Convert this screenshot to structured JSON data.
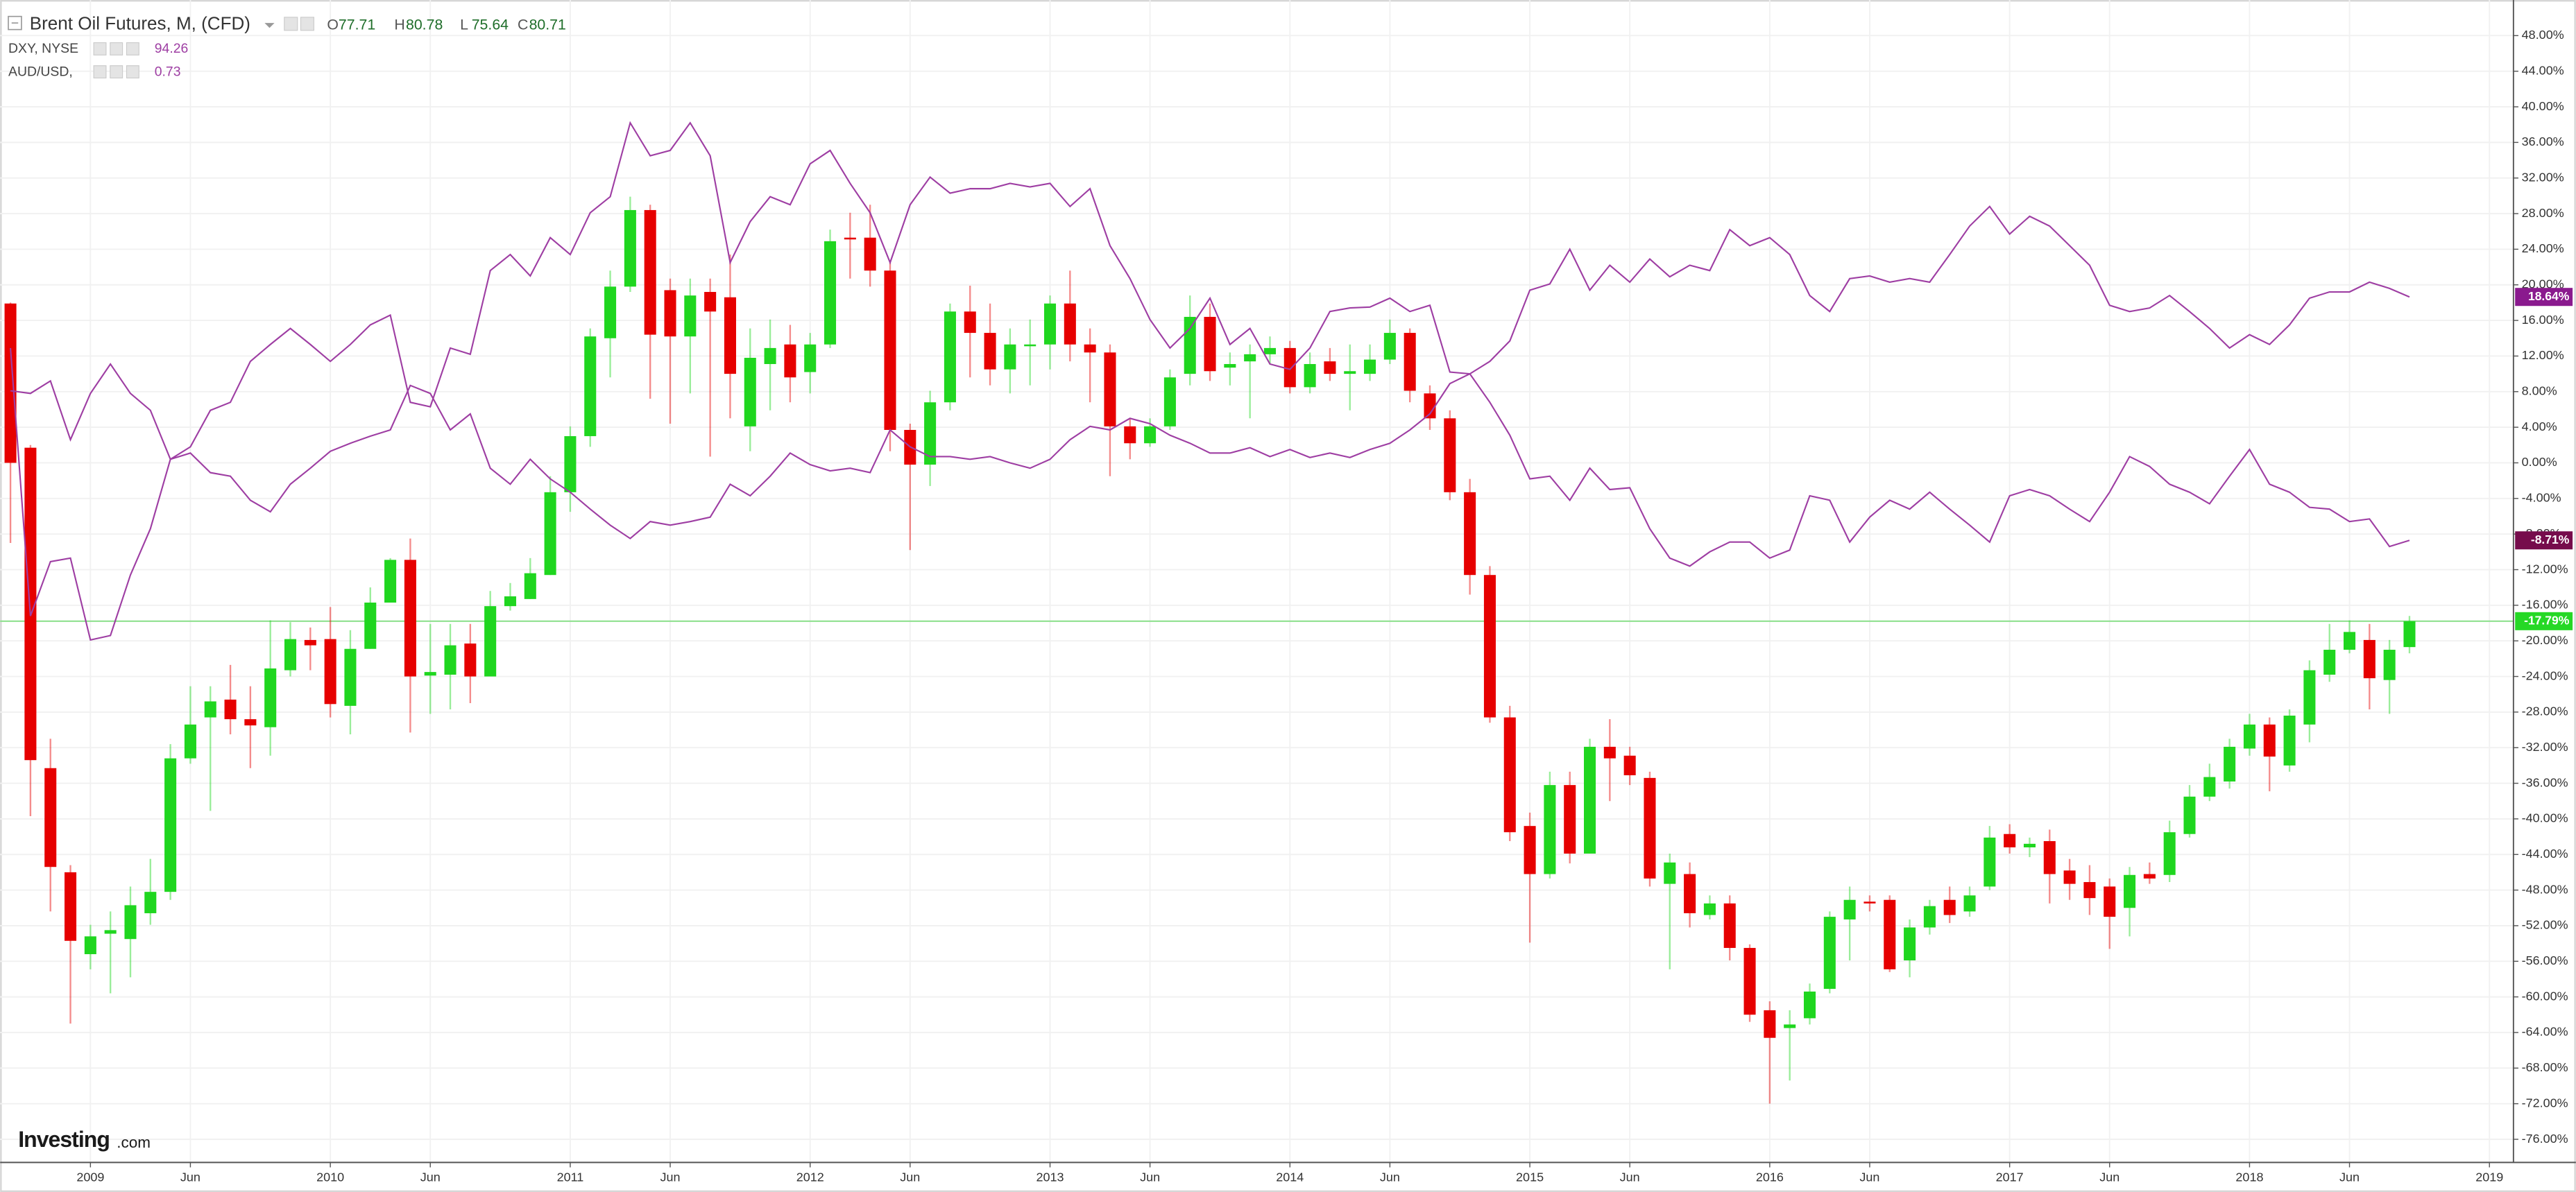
{
  "chart_data": {
    "type": "candlestick",
    "title": "Brent Oil Futures, M, (CFD)",
    "header": [
      {
        "label": "O",
        "value": 77.71
      },
      {
        "label": "H",
        "value": 80.78
      },
      {
        "label": "L",
        "value": 75.64
      },
      {
        "label": "C",
        "value": 80.71
      }
    ],
    "watermark": [
      "Investing",
      ".com"
    ],
    "last_label": "-17.79%",
    "up_color": "#1fd61f",
    "down_color": "#e60000",
    "price_line_color": "#8fe08f",
    "grid": true,
    "ylim": [
      -78.6,
      52
    ],
    "yticks": [
      {
        "value": -76,
        "label": "-76.00%"
      },
      {
        "value": -72,
        "label": "-72.00%"
      },
      {
        "value": -68,
        "label": "-68.00%"
      },
      {
        "value": -64,
        "label": "-64.00%"
      },
      {
        "value": -60,
        "label": "-60.00%"
      },
      {
        "value": -56,
        "label": "-56.00%"
      },
      {
        "value": -52,
        "label": "-52.00%"
      },
      {
        "value": -48,
        "label": "-48.00%"
      },
      {
        "value": -44,
        "label": "-44.00%"
      },
      {
        "value": -40,
        "label": "-40.00%"
      },
      {
        "value": -36,
        "label": "-36.00%"
      },
      {
        "value": -32,
        "label": "-32.00%"
      },
      {
        "value": -28,
        "label": "-28.00%"
      },
      {
        "value": -24,
        "label": "-24.00%"
      },
      {
        "value": -20,
        "label": "-20.00%"
      },
      {
        "value": -16,
        "label": "-16.00%"
      },
      {
        "value": -12,
        "label": "-12.00%"
      },
      {
        "value": -8,
        "label": "-8.00%"
      },
      {
        "value": -4,
        "label": "-4.00%"
      },
      {
        "value": 0,
        "label": "0.00%"
      },
      {
        "value": 4,
        "label": "4.00%"
      },
      {
        "value": 8,
        "label": "8.00%"
      },
      {
        "value": 12,
        "label": "12.00%"
      },
      {
        "value": 16,
        "label": "16.00%"
      },
      {
        "value": 20,
        "label": "20.00%"
      },
      {
        "value": 24,
        "label": "24.00%"
      },
      {
        "value": 28,
        "label": "28.00%"
      },
      {
        "value": 32,
        "label": "32.00%"
      },
      {
        "value": 36,
        "label": "36.00%"
      },
      {
        "value": 40,
        "label": "40.00%"
      },
      {
        "value": 44,
        "label": "44.00%"
      },
      {
        "value": 48,
        "label": "48.00%"
      }
    ],
    "categories": [
      null,
      null,
      null,
      null,
      "2009",
      null,
      null,
      null,
      null,
      "Jun",
      null,
      null,
      null,
      null,
      null,
      null,
      "2010",
      null,
      null,
      null,
      null,
      "Jun",
      null,
      null,
      null,
      null,
      null,
      null,
      "2011",
      null,
      null,
      null,
      null,
      "Jun",
      null,
      null,
      null,
      null,
      null,
      null,
      "2012",
      null,
      null,
      null,
      null,
      "Jun",
      null,
      null,
      null,
      null,
      null,
      null,
      "2013",
      null,
      null,
      null,
      null,
      "Jun",
      null,
      null,
      null,
      null,
      null,
      null,
      "2014",
      null,
      null,
      null,
      null,
      "Jun",
      null,
      null,
      null,
      null,
      null,
      null,
      "2015",
      null,
      null,
      null,
      null,
      "Jun",
      null,
      null,
      null,
      null,
      null,
      null,
      "2016",
      null,
      null,
      null,
      null,
      "Jun",
      null,
      null,
      null,
      null,
      null,
      null,
      "2017",
      null,
      null,
      null,
      null,
      "Jun",
      null,
      null,
      null,
      null,
      null,
      null,
      "2018",
      null,
      null,
      null,
      null,
      "Jun",
      null,
      null,
      null,
      null,
      null,
      null,
      "2019"
    ],
    "open": [
      17.9,
      1.7,
      -34.3,
      -46,
      -55.2,
      -52.9,
      -53.5,
      -50.6,
      -48.2,
      -33.2,
      -28.6,
      -26.6,
      -28.8,
      -29.7,
      -23.3,
      -19.9,
      -19.8,
      -27.3,
      -20.9,
      -15.7,
      -10.9,
      -23.9,
      -23.8,
      -20.3,
      -24,
      -16.1,
      -15.3,
      -12.6,
      -3.3,
      3,
      14,
      19.8,
      28.4,
      19.4,
      14.2,
      19.2,
      18.6,
      4.1,
      11.1,
      13.3,
      10.2,
      13.3,
      25.3,
      25.3,
      21.6,
      3.7,
      -0.2,
      6.8,
      17,
      14.6,
      10.5,
      13.1,
      13.3,
      17.9,
      13.3,
      12.4,
      4.1,
      2.2,
      4.1,
      10,
      16.4,
      10.7,
      11.4,
      12.2,
      12.9,
      8.5,
      11.4,
      10,
      10,
      11.6,
      14.6,
      7.8,
      5,
      -3.3,
      -12.6,
      -28.6,
      -40.8,
      -46.2,
      -36.2,
      -43.9,
      -31.9,
      -32.9,
      -35.4,
      -47.3,
      -46.2,
      -50.8,
      -49.5,
      -54.5,
      -61.5,
      -63.5,
      -62.4,
      -59.1,
      -51.3,
      -49.3,
      -49.1,
      -55.9,
      -52.2,
      -49.1,
      -50.4,
      -47.6,
      -41.7,
      -43.2,
      -42.5,
      -45.8,
      -47.1,
      -47.6,
      -50,
      -46.2,
      -46.3,
      -41.7,
      -37.5,
      -35.8,
      -32.1,
      -29.4,
      -34,
      -29.4,
      -23.8,
      -21,
      -19.9,
      -24.4,
      -20.7,
      null,
      null,
      null,
      null
    ],
    "high": [
      18,
      2,
      -31,
      -45.2,
      -51.9,
      -50.4,
      -47.6,
      -44.5,
      -31.6,
      -25.1,
      -25.1,
      -22.7,
      -25.1,
      -17.7,
      -17.9,
      -18.5,
      -16.2,
      -18.8,
      -14,
      -10.7,
      -8.5,
      -18.1,
      -18.1,
      -18.1,
      -14.4,
      -13.5,
      -10.7,
      -1.5,
      4.1,
      15.1,
      21.6,
      29.9,
      29,
      20.7,
      20.7,
      20.7,
      23.4,
      15.1,
      16.1,
      15.5,
      14.6,
      26.2,
      28.1,
      29,
      22.5,
      4.4,
      8.1,
      17.9,
      19.9,
      17.9,
      15.1,
      16.1,
      18.8,
      21.6,
      15.1,
      13.3,
      5,
      5,
      10.5,
      18.8,
      17.9,
      12.4,
      13.3,
      14.2,
      13.7,
      12.4,
      12.9,
      13.3,
      13.3,
      16.1,
      15.1,
      8.7,
      5.9,
      -1.8,
      -11.6,
      -27.3,
      -39.3,
      -34.7,
      -34.7,
      -31,
      -28.8,
      -31.9,
      -34.7,
      -43.9,
      -44.9,
      -48.6,
      -48.6,
      -54.1,
      -60.5,
      -61.5,
      -58.5,
      -50.4,
      -47.6,
      -48.6,
      -48.6,
      -51.3,
      -49.1,
      -47.6,
      -47.6,
      -40.8,
      -40.6,
      -42.1,
      -41.2,
      -44.5,
      -45.2,
      -46.7,
      -45.4,
      -44.9,
      -40.2,
      -36.2,
      -33.8,
      -31,
      -28.2,
      -28.6,
      -27.7,
      -22.2,
      -18.1,
      -17.7,
      -18.1,
      -19.9,
      -17.2,
      null,
      null,
      null,
      null
    ],
    "low": [
      -9,
      -39.7,
      -50.4,
      -63,
      -56.9,
      -59.6,
      -57.8,
      -51.9,
      -49.1,
      -33.8,
      -39.1,
      -30.5,
      -34.3,
      -32.9,
      -24,
      -23.3,
      -28.6,
      -30.5,
      -20.9,
      -15.7,
      -30.3,
      -28.2,
      -27.7,
      -27,
      -24,
      -16.6,
      -15.3,
      -12.6,
      -5.5,
      1.8,
      9.6,
      19.2,
      7.2,
      4.4,
      7.8,
      0.7,
      5,
      1.3,
      5.9,
      6.8,
      7.8,
      12.9,
      20.7,
      19.8,
      1.3,
      -9.8,
      -2.6,
      5.9,
      9.6,
      8.7,
      7.8,
      8.7,
      10.5,
      11.4,
      6.8,
      -1.5,
      0.4,
      1.8,
      3.7,
      8.7,
      9.2,
      8.7,
      5,
      11.1,
      7.8,
      7.8,
      9.2,
      5.9,
      9.2,
      11.1,
      6.8,
      3.7,
      -4.2,
      -14.8,
      -29.2,
      -42.5,
      -53.9,
      -46.7,
      -45,
      -43.9,
      -38,
      -36.2,
      -47.6,
      -56.9,
      -52.2,
      -51.3,
      -55.9,
      -62.8,
      -72,
      -69.4,
      -63.1,
      -59.6,
      -55.9,
      -50.4,
      -57.2,
      -57.8,
      -53,
      -51.7,
      -51,
      -48,
      -43.9,
      -44.3,
      -49.5,
      -49.1,
      -50.8,
      -54.6,
      -53.2,
      -47.3,
      -47.1,
      -42.1,
      -38,
      -36.6,
      -32.9,
      -36.9,
      -34.7,
      -31.4,
      -24.6,
      -21.4,
      -27.7,
      -28.2,
      -21.4,
      null,
      null,
      null,
      null
    ],
    "close": [
      0,
      -33.4,
      -45.4,
      -53.7,
      -53.2,
      -52.5,
      -49.7,
      -48.2,
      -33.2,
      -29.4,
      -26.8,
      -28.8,
      -29.5,
      -23.1,
      -19.8,
      -20.5,
      -27.1,
      -20.9,
      -15.7,
      -10.9,
      -24,
      -23.5,
      -20.5,
      -24,
      -16.1,
      -15,
      -12.4,
      -3.3,
      3,
      14.2,
      19.8,
      28.4,
      14.4,
      14.2,
      18.8,
      17,
      10,
      11.8,
      12.9,
      9.6,
      13.3,
      24.9,
      25.1,
      21.6,
      3.7,
      -0.2,
      6.8,
      17,
      14.6,
      10.5,
      13.3,
      13.3,
      17.9,
      13.3,
      12.4,
      4.1,
      2.2,
      4.1,
      9.6,
      16.4,
      10.3,
      11.1,
      12.2,
      12.9,
      8.5,
      11.1,
      10,
      10.3,
      11.6,
      14.6,
      8.1,
      5,
      -3.3,
      -12.6,
      -28.6,
      -41.5,
      -46.2,
      -36.2,
      -43.9,
      -31.9,
      -33.2,
      -35.1,
      -46.7,
      -44.9,
      -50.6,
      -49.5,
      -54.5,
      -62,
      -64.6,
      -63.1,
      -59.4,
      -51,
      -49.1,
      -49.5,
      -56.9,
      -52.2,
      -49.8,
      -50.8,
      -48.6,
      -42.1,
      -43.2,
      -42.8,
      -46.2,
      -47.3,
      -48.9,
      -51,
      -46.3,
      -46.7,
      -41.5,
      -37.5,
      -35.3,
      -31.9,
      -29.4,
      -33,
      -28.4,
      -23.3,
      -21,
      -19,
      -24.2,
      -21,
      -17.79,
      null,
      null,
      null,
      null
    ],
    "overlays": [
      {
        "name": "DXY, NYSE",
        "value": 94.26,
        "color": "#9e3ea3",
        "label_color": "#8a1a8e",
        "end_label": "18.64%",
        "values": [
          8.1,
          7.8,
          9.2,
          2.6,
          7.8,
          11.1,
          7.8,
          5.9,
          0.4,
          1.1,
          -1.1,
          -1.5,
          -4.2,
          -5.5,
          -2.4,
          -0.6,
          1.3,
          2.2,
          3,
          3.7,
          8.7,
          7.8,
          3.7,
          5.5,
          -0.6,
          -2.4,
          0.4,
          -1.8,
          -3.3,
          -5.2,
          -7,
          -8.5,
          -6.6,
          -7,
          -6.6,
          -6.1,
          -2.4,
          -3.7,
          -1.5,
          1.1,
          -0.2,
          -0.9,
          -0.6,
          -1.1,
          3.7,
          1.8,
          0.7,
          0.7,
          0.4,
          0.7,
          0,
          -0.6,
          0.4,
          2.6,
          4.1,
          3.7,
          5,
          4.4,
          3.1,
          2.2,
          1.1,
          1.1,
          1.7,
          0.7,
          1.5,
          0.6,
          1.1,
          0.6,
          1.5,
          2.2,
          3.7,
          5.5,
          8.9,
          10,
          11.4,
          13.7,
          19.4,
          20.1,
          24,
          19.4,
          22.2,
          20.3,
          22.9,
          20.9,
          22.2,
          21.6,
          26.2,
          24.4,
          25.3,
          23.4,
          18.8,
          17,
          20.7,
          21,
          20.3,
          20.7,
          20.3,
          23.4,
          26.6,
          28.8,
          25.7,
          27.7,
          26.6,
          24.4,
          22.2,
          17.7,
          17,
          17.4,
          18.8,
          17,
          15.1,
          12.9,
          14.4,
          13.3,
          15.5,
          18.5,
          19.2,
          19.2,
          20.3,
          19.6,
          18.64,
          null,
          null,
          null,
          null
        ]
      },
      {
        "name": "AUD/USD,",
        "value": 0.73,
        "color": "#9e3ea3",
        "label_color": "#760c4c",
        "end_label": "-8.71%",
        "values": [
          12.9,
          -17.2,
          -11.1,
          -10.7,
          -19.9,
          -19.4,
          -12.6,
          -7.4,
          0.4,
          1.8,
          5.9,
          6.8,
          11.4,
          13.3,
          15.1,
          13.3,
          11.4,
          13.3,
          15.5,
          16.6,
          6.8,
          6.3,
          12.9,
          12.2,
          21.6,
          23.4,
          21,
          25.3,
          23.4,
          28.1,
          29.9,
          38.2,
          34.5,
          35.1,
          38.2,
          34.5,
          22.5,
          27.1,
          29.9,
          29,
          33.6,
          35.1,
          31.4,
          28.1,
          22.5,
          29,
          32.1,
          30.3,
          30.8,
          30.8,
          31.4,
          31,
          31.4,
          28.8,
          30.8,
          24.4,
          20.7,
          16.1,
          12.9,
          15.1,
          18.5,
          13.3,
          15.1,
          11.1,
          10.5,
          12.9,
          17,
          17.4,
          17.5,
          18.5,
          17,
          17.7,
          10.2,
          10,
          6.8,
          3.1,
          -1.8,
          -1.5,
          -4.2,
          -0.6,
          -3,
          -2.8,
          -7.4,
          -10.7,
          -11.6,
          -10,
          -8.9,
          -8.9,
          -10.7,
          -9.8,
          -3.7,
          -4.2,
          -8.9,
          -6.1,
          -4.2,
          -5.2,
          -3.3,
          -5.2,
          -7,
          -8.9,
          -3.7,
          -3,
          -3.7,
          -5.2,
          -6.6,
          -3.3,
          0.7,
          -0.4,
          -2.4,
          -3.3,
          -4.6,
          -1.5,
          1.5,
          -2.4,
          -3.3,
          -5,
          -5.2,
          -6.6,
          -6.3,
          -9.4,
          -8.71,
          null,
          null,
          null,
          null
        ]
      }
    ]
  }
}
